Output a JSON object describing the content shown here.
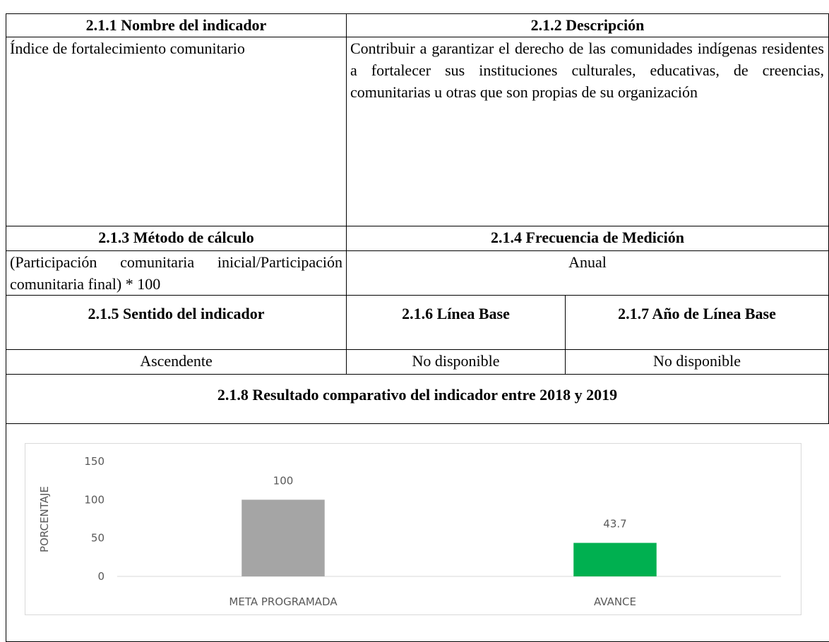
{
  "table": {
    "rows": [
      [
        "2.1.1 Nombre del indicador",
        "2.1.2 Descripción"
      ],
      [
        "Índice de fortalecimiento comunitario",
        "Contribuir a garantizar el derecho de las comunidades indígenas residentes a fortalecer sus instituciones culturales, educativas, de creencias, comunitarias u otras que son propias de su organización"
      ],
      [
        "2.1.3 Método de cálculo",
        "2.1.4 Frecuencia de Medición"
      ],
      [
        "(Participación comunitaria inicial/Participación comunitaria final) * 100",
        "Anual"
      ],
      [
        "2.1.5 Sentido del indicador",
        "2.1.6 Línea Base",
        "2.1.7 Año de Línea Base"
      ],
      [
        "Ascendente",
        "No disponible",
        "No disponible"
      ],
      [
        "2.1.8 Resultado comparativo del indicador entre 2018 y 2019"
      ]
    ]
  },
  "chart_data": {
    "type": "bar",
    "y_label": "PORCENTAJE",
    "categories": [
      "META PROGRAMADA",
      "AVANCE"
    ],
    "values": [
      100,
      43.7
    ],
    "colors": [
      "#a5a5a5",
      "#00b050"
    ],
    "ylim": [
      0,
      150
    ],
    "yticks": [
      0,
      50,
      100,
      150
    ],
    "grid": false
  }
}
